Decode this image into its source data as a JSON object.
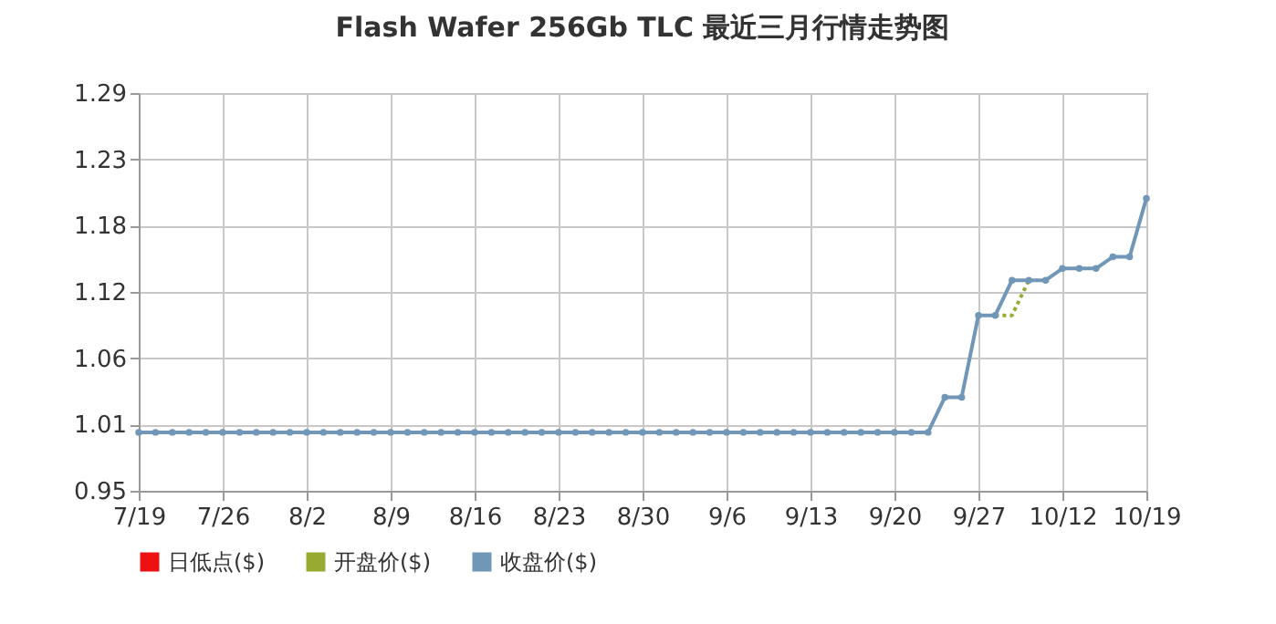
{
  "chart_data": {
    "type": "line",
    "title": "Flash Wafer 256Gb TLC 最近三月行情走势图",
    "categories": [
      "7/19",
      null,
      null,
      null,
      null,
      "7/26",
      null,
      null,
      null,
      null,
      "8/2",
      null,
      null,
      null,
      null,
      "8/9",
      null,
      null,
      null,
      null,
      "8/16",
      null,
      null,
      null,
      null,
      "8/23",
      null,
      null,
      null,
      null,
      "8/30",
      null,
      null,
      null,
      null,
      "9/6",
      null,
      null,
      null,
      null,
      "9/13",
      null,
      null,
      null,
      null,
      "9/20",
      null,
      null,
      null,
      null,
      "9/27",
      null,
      null,
      null,
      null,
      "10/12",
      null,
      null,
      null,
      null,
      "10/19"
    ],
    "series": [
      {
        "name": "日低点($)",
        "color": "#ee1111",
        "line_style": "solid",
        "values": [
          null,
          null,
          null,
          null,
          null,
          null,
          null,
          null,
          null,
          null,
          null,
          null,
          null,
          null,
          null,
          null,
          null,
          null,
          null,
          null,
          null,
          null,
          null,
          null,
          null,
          null,
          null,
          null,
          null,
          null,
          null,
          null,
          null,
          null,
          null,
          null,
          null,
          null,
          null,
          null,
          null,
          null,
          null,
          null,
          null,
          null,
          null,
          null,
          null,
          null,
          null,
          null,
          null,
          null,
          null,
          null,
          null,
          null,
          null,
          null,
          null
        ]
      },
      {
        "name": "开盘价($)",
        "color": "#99aa33",
        "line_style": "dotted",
        "marker": "none",
        "values": [
          null,
          null,
          null,
          null,
          null,
          null,
          null,
          null,
          null,
          null,
          null,
          null,
          null,
          null,
          null,
          null,
          null,
          null,
          null,
          null,
          null,
          null,
          null,
          null,
          null,
          null,
          null,
          null,
          null,
          null,
          null,
          null,
          null,
          null,
          null,
          null,
          null,
          null,
          null,
          null,
          null,
          null,
          null,
          null,
          null,
          null,
          null,
          null,
          null,
          null,
          null,
          1.1,
          1.1,
          1.13,
          null,
          null,
          null,
          null,
          null,
          null,
          null
        ]
      },
      {
        "name": "收盘价($)",
        "color": "#7096b8",
        "line_style": "solid",
        "values": [
          1.0,
          1.0,
          1.0,
          1.0,
          1.0,
          1.0,
          1.0,
          1.0,
          1.0,
          1.0,
          1.0,
          1.0,
          1.0,
          1.0,
          1.0,
          1.0,
          1.0,
          1.0,
          1.0,
          1.0,
          1.0,
          1.0,
          1.0,
          1.0,
          1.0,
          1.0,
          1.0,
          1.0,
          1.0,
          1.0,
          1.0,
          1.0,
          1.0,
          1.0,
          1.0,
          1.0,
          1.0,
          1.0,
          1.0,
          1.0,
          1.0,
          1.0,
          1.0,
          1.0,
          1.0,
          1.0,
          1.0,
          1.0,
          1.03,
          1.03,
          1.1,
          1.1,
          1.13,
          1.13,
          1.13,
          1.14,
          1.14,
          1.14,
          1.15,
          1.15,
          1.2
        ]
      }
    ],
    "ylim": [
      0.95,
      1.29
    ],
    "yticks": [
      0.95,
      {
        "value": 1.0067,
        "label": "1.01"
      },
      {
        "value": 1.0633,
        "label": "1.06"
      },
      1.12,
      {
        "value": 1.1767,
        "label": "1.18"
      },
      {
        "value": 1.2333,
        "label": "1.23"
      },
      1.29
    ],
    "grid": true,
    "legend": "bottom",
    "marker": "circle"
  }
}
